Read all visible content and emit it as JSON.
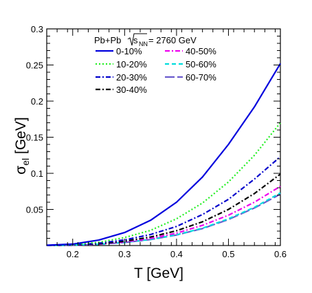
{
  "chart_data": {
    "type": "line",
    "xlabel": "T [GeV]",
    "ylabel_main": "σ",
    "ylabel_sub": "el",
    "ylabel_unit": " [GeV]",
    "xlim": [
      0.15,
      0.6
    ],
    "ylim": [
      0,
      0.3
    ],
    "x_ticks": [
      0.2,
      0.3,
      0.4,
      0.5,
      0.6
    ],
    "x_tick_labels": [
      "0.2",
      "0.3",
      "0.4",
      "0.5",
      "0.6"
    ],
    "y_ticks": [
      0.05,
      0.1,
      0.15,
      0.2,
      0.25,
      0.3
    ],
    "y_tick_labels": [
      "0.05",
      "0.1",
      "0.15",
      "0.2",
      "0.25",
      "0.3"
    ],
    "grid": false,
    "legend": {
      "placement": "top-left",
      "title_prefix": "Pb+Pb ",
      "title_sqrt": "s",
      "title_sub": "NN",
      "title_suffix": "= 2760 GeV"
    },
    "x": [
      0.15,
      0.2,
      0.25,
      0.3,
      0.35,
      0.4,
      0.45,
      0.5,
      0.55,
      0.6
    ],
    "series": [
      {
        "name": "0-10%",
        "color": "#0000dd",
        "dash": "solid",
        "values": [
          0.0005,
          0.002,
          0.0075,
          0.018,
          0.035,
          0.06,
          0.095,
          0.14,
          0.192,
          0.252
        ]
      },
      {
        "name": "10-20%",
        "color": "#22ee22",
        "dash": "dotted",
        "values": [
          0.0003,
          0.0012,
          0.0045,
          0.011,
          0.021,
          0.037,
          0.059,
          0.088,
          0.125,
          0.17
        ]
      },
      {
        "name": "20-30%",
        "color": "#0000cc",
        "dash": "dashdot",
        "values": [
          0.0002,
          0.0009,
          0.0032,
          0.0078,
          0.0152,
          0.0265,
          0.043,
          0.064,
          0.092,
          0.123
        ]
      },
      {
        "name": "30-40%",
        "color": "#000000",
        "dash": "dashdot",
        "values": [
          0.00015,
          0.0007,
          0.0025,
          0.006,
          0.0118,
          0.0205,
          0.033,
          0.05,
          0.072,
          0.099
        ]
      },
      {
        "name": "40-50%",
        "color": "#ee00ee",
        "dash": "dashdot",
        "values": [
          0.00012,
          0.0006,
          0.002,
          0.005,
          0.0098,
          0.0172,
          0.028,
          0.042,
          0.06,
          0.082
        ]
      },
      {
        "name": "50-60%",
        "color": "#00dddd",
        "dash": "dashed",
        "values": [
          0.0001,
          0.0005,
          0.0017,
          0.0043,
          0.0085,
          0.015,
          0.024,
          0.037,
          0.053,
          0.073
        ]
      },
      {
        "name": "60-70%",
        "color": "#6a5acd",
        "dash": "longdash",
        "values": [
          0.0001,
          0.0005,
          0.0017,
          0.0042,
          0.0083,
          0.0146,
          0.0235,
          0.036,
          0.052,
          0.071
        ]
      }
    ]
  }
}
